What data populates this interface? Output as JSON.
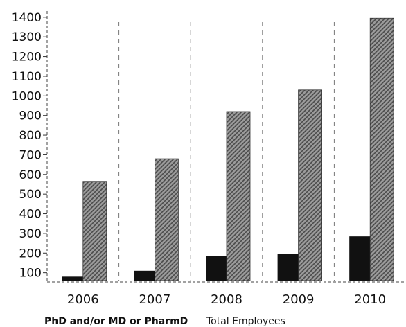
{
  "chart_data": {
    "type": "bar",
    "categories": [
      "2006",
      "2007",
      "2008",
      "2009",
      "2010"
    ],
    "series": [
      {
        "name": "PhD and/or MD or PharmD",
        "values": [
          80,
          110,
          185,
          195,
          285
        ],
        "color": "#111111",
        "pattern": "solid"
      },
      {
        "name": "Total Employees",
        "values": [
          565,
          680,
          920,
          1030,
          1395
        ],
        "color": "#8a8a8a",
        "pattern": "hatched"
      }
    ],
    "yticks": [
      100,
      200,
      300,
      400,
      500,
      600,
      700,
      800,
      900,
      1000,
      1100,
      1200,
      1300,
      1400
    ],
    "ylim": [
      60,
      1410
    ],
    "title": "",
    "xlabel": "",
    "ylabel": "",
    "grid": "vertical dashed separators between categories",
    "legend_position": "bottom"
  }
}
